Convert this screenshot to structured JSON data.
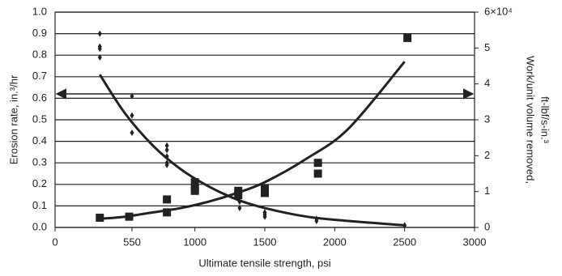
{
  "chart_data": {
    "type": "scatter",
    "xlabel": "Ultimate tensile strength, psi",
    "ylabel": "Erosion rate, in.³/hr",
    "y2label": [
      "Work/unit volume removed,",
      "ft-lbf/s-in.³"
    ],
    "xlim": [
      0,
      3000
    ],
    "xticks": [
      0,
      550,
      1000,
      1500,
      2000,
      2500,
      3000
    ],
    "ylim": [
      0,
      1
    ],
    "yticks": [
      {
        "value": 0,
        "label": "0.0"
      },
      0.1,
      0.2,
      0.3,
      0.4,
      0.5,
      0.6,
      0.7,
      0.8,
      0.9,
      {
        "value": 1,
        "label": "1.0"
      }
    ],
    "y2lim": [
      0,
      6
    ],
    "y2ticks": [
      0,
      1,
      2,
      3,
      4,
      5,
      {
        "value": 6,
        "label": "6×10⁴"
      }
    ],
    "grid": true,
    "series": [
      {
        "type": "scatter",
        "marker": "diamond",
        "color": "#222",
        "x": [
          320,
          320,
          320,
          320,
          550,
          550,
          550,
          800,
          800,
          800,
          800,
          800,
          1000,
          1000,
          1000,
          1320,
          1320,
          1320,
          1500,
          1500,
          1500,
          1870,
          1870,
          2500
        ],
        "values": [
          0.9,
          0.84,
          0.83,
          0.79,
          0.61,
          0.52,
          0.44,
          0.38,
          0.36,
          0.33,
          0.3,
          0.29,
          0.22,
          0.2,
          0.19,
          0.15,
          0.12,
          0.09,
          0.07,
          0.06,
          0.05,
          0.04,
          0.03,
          0.01
        ]
      },
      {
        "type": "scatter",
        "marker": "square",
        "color": "#222",
        "axis": "y2",
        "x": [
          320,
          530,
          800,
          800,
          1000,
          1000,
          1000,
          1310,
          1310,
          1500,
          1500,
          1880,
          1880,
          2520
        ],
        "values": [
          0.27,
          0.3,
          0.78,
          0.42,
          1.26,
          1.08,
          1.02,
          1.02,
          0.9,
          1.08,
          0.96,
          1.8,
          1.5,
          5.28
        ]
      },
      {
        "type": "line",
        "color": "#222",
        "x": [
          320,
          500,
          700,
          900,
          1100,
          1300,
          1500,
          1800,
          2100,
          2500
        ],
        "values": [
          0.71,
          0.53,
          0.38,
          0.27,
          0.19,
          0.13,
          0.09,
          0.05,
          0.03,
          0.01
        ]
      },
      {
        "type": "line",
        "color": "#222",
        "axis": "y2",
        "x": [
          320,
          500,
          700,
          900,
          1100,
          1300,
          1500,
          1800,
          2100,
          2500
        ],
        "values": [
          0.24,
          0.3,
          0.42,
          0.54,
          0.72,
          0.96,
          1.26,
          1.92,
          2.76,
          4.62
        ]
      }
    ]
  }
}
